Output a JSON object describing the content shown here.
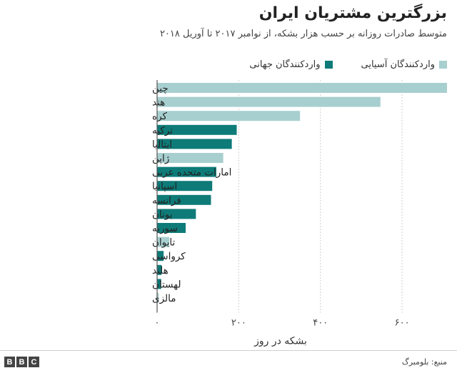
{
  "header": {
    "title": "بزرگترین مشتریان ایران",
    "subtitle": "متوسط صادرات روزانه بر حسب هزار بشکه، از نوامبر ۲۰۱۷ تا آوریل ۲۰۱۸"
  },
  "footer": {
    "source": "منبع: بلومبرگ",
    "logo_letters": [
      "B",
      "B",
      "C"
    ]
  },
  "colors": {
    "asian": "#a8cfcf",
    "global": "#0e7b78",
    "axis": "#555555",
    "grid": "#cfcfcf"
  },
  "chart_data": {
    "type": "bar",
    "orientation": "horizontal",
    "title": "بزرگترین مشتریان ایران",
    "subtitle": "متوسط صادرات روزانه بر حسب هزار بشکه، از نوامبر ۲۰۱۷ تا آوریل ۲۰۱۸",
    "xlabel": "بشکه در روز",
    "ylabel": "",
    "xlim": [
      0,
      710
    ],
    "ticks": [
      {
        "value": 0,
        "label": "۰"
      },
      {
        "value": 200,
        "label": "۲۰۰"
      },
      {
        "value": 400,
        "label": "۴۰۰"
      },
      {
        "value": 600,
        "label": "۶۰۰"
      }
    ],
    "grid": true,
    "legend_position": "top-right",
    "series": [
      {
        "name": "واردکنندگان آسیایی",
        "color_key": "asian"
      },
      {
        "name": "واردکنندگان جهانی",
        "color_key": "global"
      }
    ],
    "categories": [
      "چین",
      "هند",
      "کره",
      "ترکیه",
      "ایتالیا",
      "ژاپن",
      "امارات متحده عربی",
      "اسپانیا",
      "فرانسه",
      "یونان",
      "سوریه",
      "تایوان",
      "کرواسی",
      "هلند",
      "لهستان",
      "مالزی"
    ],
    "values": [
      710,
      547,
      350,
      195,
      183,
      162,
      145,
      135,
      132,
      95,
      70,
      30,
      16,
      11,
      10,
      4
    ],
    "group": [
      "asian",
      "asian",
      "asian",
      "global",
      "global",
      "asian",
      "global",
      "global",
      "global",
      "global",
      "global",
      "asian",
      "global",
      "global",
      "global",
      "asian"
    ]
  }
}
